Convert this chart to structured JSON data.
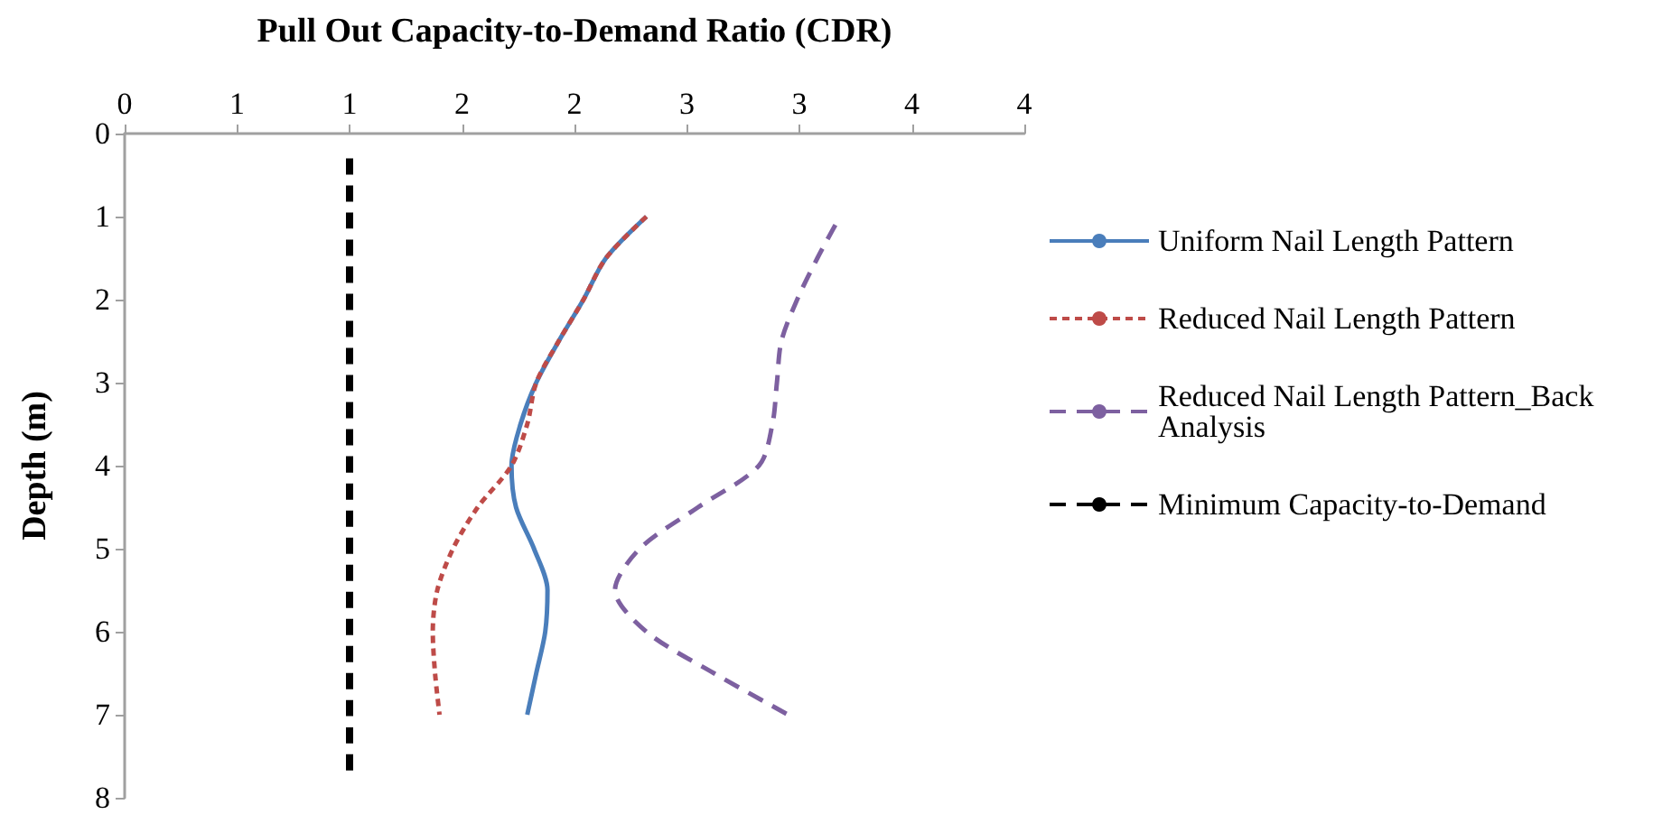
{
  "chart_data": {
    "type": "line",
    "xlabel": "Pull Out Capacity-to-Demand Ratio (CDR)",
    "ylabel": "Depth (m)",
    "xlim": [
      0,
      4
    ],
    "xticks": [
      0,
      {
        "value": 0.5,
        "label": "1"
      },
      1,
      {
        "value": 1.5,
        "label": "2"
      },
      2,
      {
        "value": 2.5,
        "label": "3"
      },
      3,
      {
        "value": 3.5,
        "label": "4"
      },
      4
    ],
    "ylim": [
      8,
      0
    ],
    "yticks": [
      0,
      1,
      2,
      3,
      4,
      5,
      6,
      7,
      8
    ],
    "grid": false,
    "legend": "right",
    "marker": "none",
    "series": [
      {
        "name": "Uniform Nail Length Pattern",
        "color": "#4a7ebb",
        "line_style": "solid",
        "x": [
          2.32,
          2.14,
          2.04,
          1.93,
          1.83,
          1.76,
          1.72,
          1.74,
          1.82,
          1.88,
          1.87,
          1.83,
          1.79
        ],
        "values": [
          1,
          1.5,
          2,
          2.5,
          3,
          3.5,
          4,
          4.5,
          5,
          5.5,
          6,
          6.5,
          7
        ]
      },
      {
        "name": "Reduced Nail Length Pattern",
        "color": "#be4b48",
        "line_style": "dotted",
        "x": [
          2.32,
          2.14,
          2.04,
          1.93,
          1.83,
          1.79,
          1.72,
          1.57,
          1.46,
          1.39,
          1.37,
          1.38,
          1.4
        ],
        "values": [
          1,
          1.5,
          2,
          2.5,
          3,
          3.5,
          4,
          4.5,
          5,
          5.5,
          6,
          6.5,
          7
        ]
      },
      {
        "name": "Reduced Nail Length Pattern_Back Analysis",
        "color": "#7d60a0",
        "line_style": "dashed",
        "x": [
          3.16,
          3.08,
          2.99,
          2.92,
          2.9,
          2.88,
          2.82,
          2.55,
          2.29,
          2.18,
          2.32,
          2.62,
          2.95
        ],
        "values": [
          1.1,
          1.5,
          2,
          2.5,
          3,
          3.5,
          4,
          4.5,
          5,
          5.5,
          6,
          6.5,
          7
        ]
      },
      {
        "name": "Minimum Capacity-to-Demand",
        "color": "#000000",
        "line_style": "dashed",
        "x": [
          1,
          1
        ],
        "values": [
          0.3,
          7.7
        ]
      }
    ]
  }
}
